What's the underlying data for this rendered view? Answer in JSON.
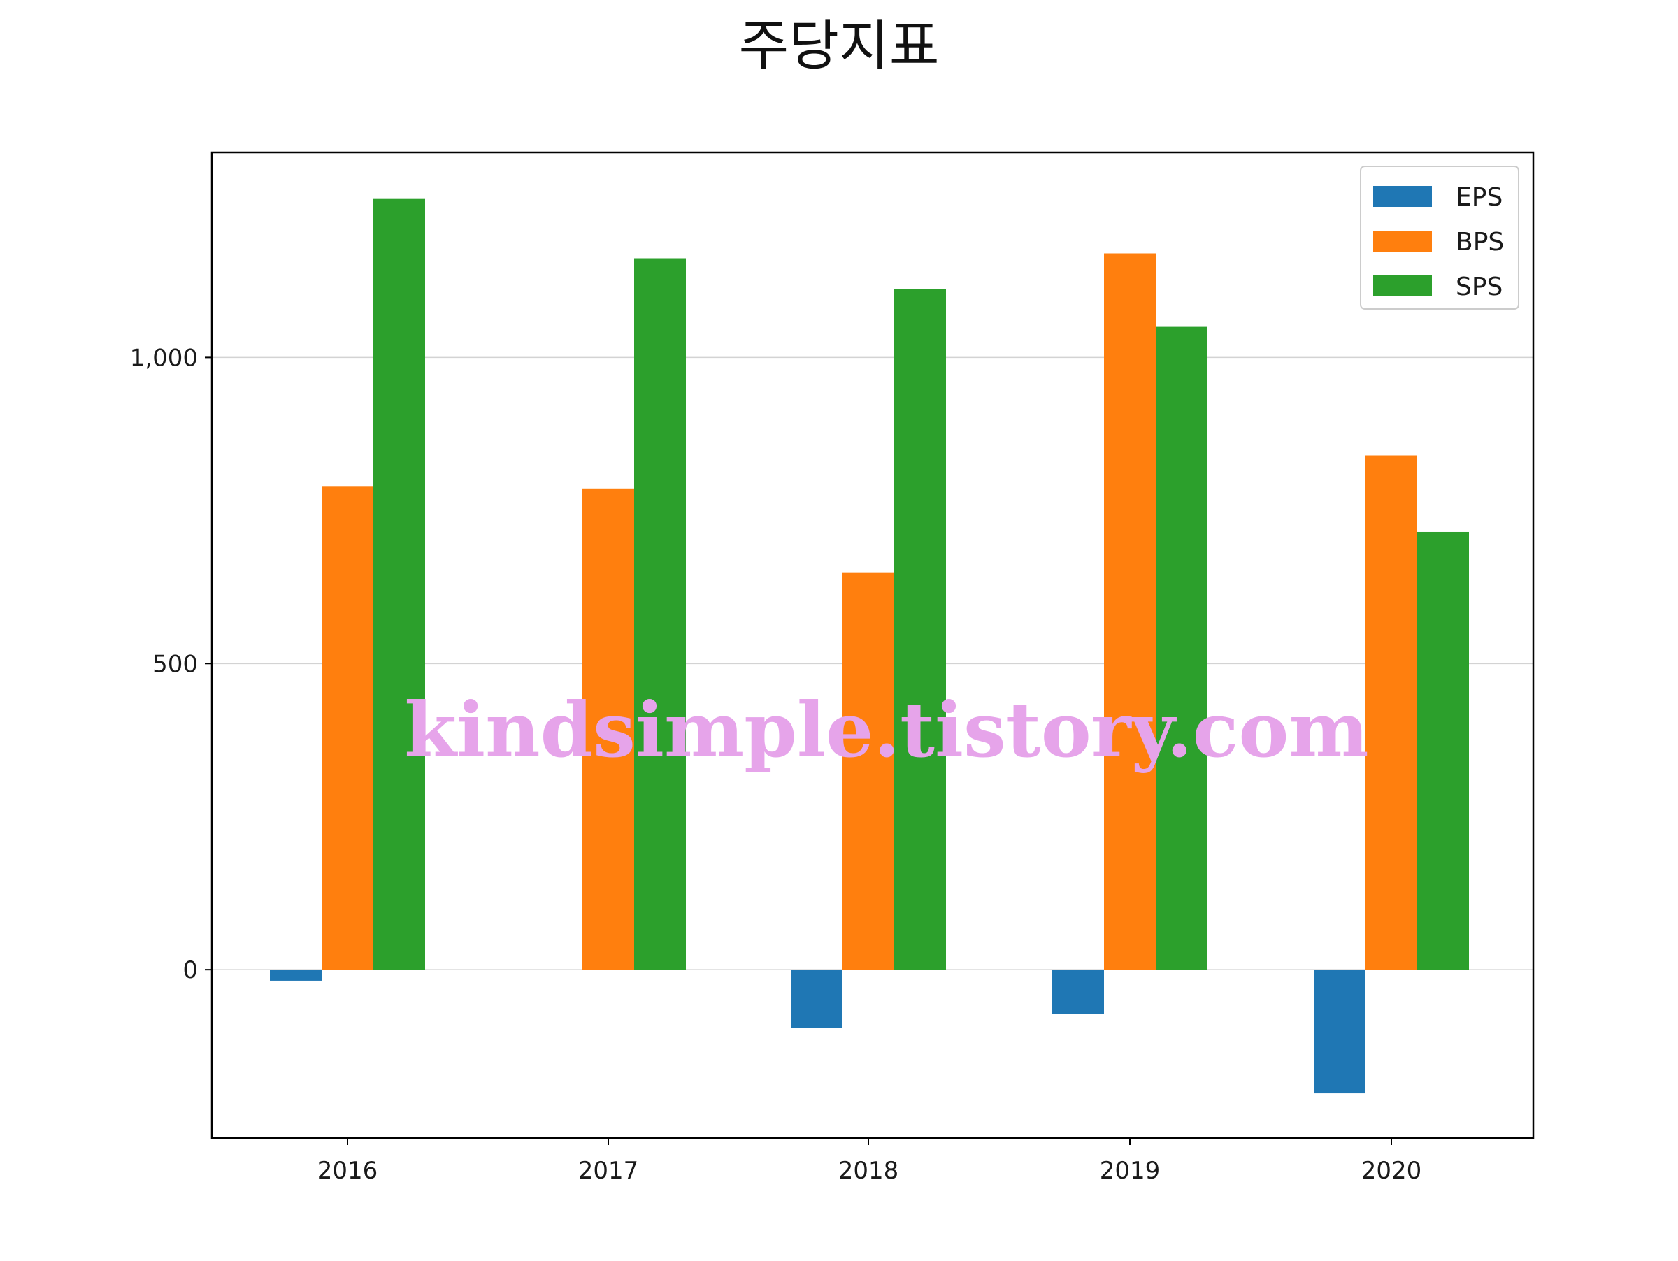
{
  "chart_data": {
    "type": "bar",
    "title": "주당지표",
    "xlabel": "",
    "ylabel": "",
    "categories": [
      "2016",
      "2017",
      "2018",
      "2019",
      "2020"
    ],
    "series": [
      {
        "name": "EPS",
        "color": "#1f77b4",
        "values": [
          -18,
          0,
          -95,
          -72,
          -202
        ]
      },
      {
        "name": "BPS",
        "color": "#ff7f0e",
        "values": [
          790,
          786,
          648,
          1170,
          840
        ]
      },
      {
        "name": "SPS",
        "color": "#2ca02c",
        "values": [
          1260,
          1162,
          1112,
          1050,
          715
        ]
      }
    ],
    "ylim": [
      -275,
      1335
    ],
    "yticks": [
      0,
      500,
      1000
    ],
    "ytick_labels": [
      "0",
      "500",
      "1,000"
    ],
    "grid": "horizontal",
    "legend_position": "top-right",
    "watermark": "kindsimple.tistory.com"
  }
}
